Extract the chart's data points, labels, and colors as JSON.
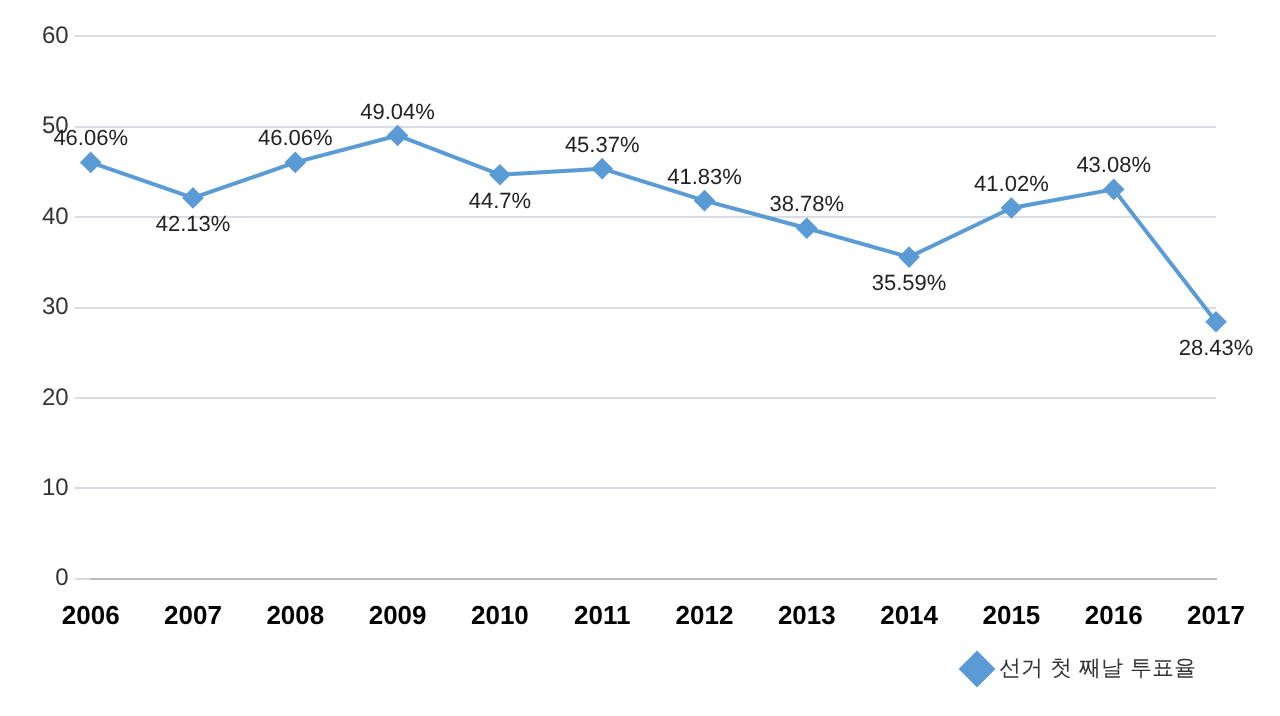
{
  "chart_data": {
    "type": "line",
    "categories": [
      "2006",
      "2007",
      "2008",
      "2009",
      "2010",
      "2011",
      "2012",
      "2013",
      "2014",
      "2015",
      "2016",
      "2017"
    ],
    "series": [
      {
        "name": "선거 첫 째날 투표율",
        "color": "#5b9bd5",
        "values": [
          46.06,
          42.13,
          46.06,
          49.04,
          44.7,
          45.37,
          41.83,
          38.78,
          35.59,
          41.02,
          43.08,
          28.43
        ],
        "value_labels": [
          "46.06%",
          "42.13%",
          "46.06%",
          "49.04%",
          "44.7%",
          "45.37%",
          "41.83%",
          "38.78%",
          "35.59%",
          "41.02%",
          "43.08%",
          "28.43%"
        ]
      }
    ],
    "ylim": [
      0,
      60
    ],
    "yticks": [
      0,
      10,
      20,
      30,
      40,
      50,
      60
    ],
    "grid": "y",
    "legend": "bottom right",
    "marker": "diamond",
    "line_style": "solid"
  }
}
